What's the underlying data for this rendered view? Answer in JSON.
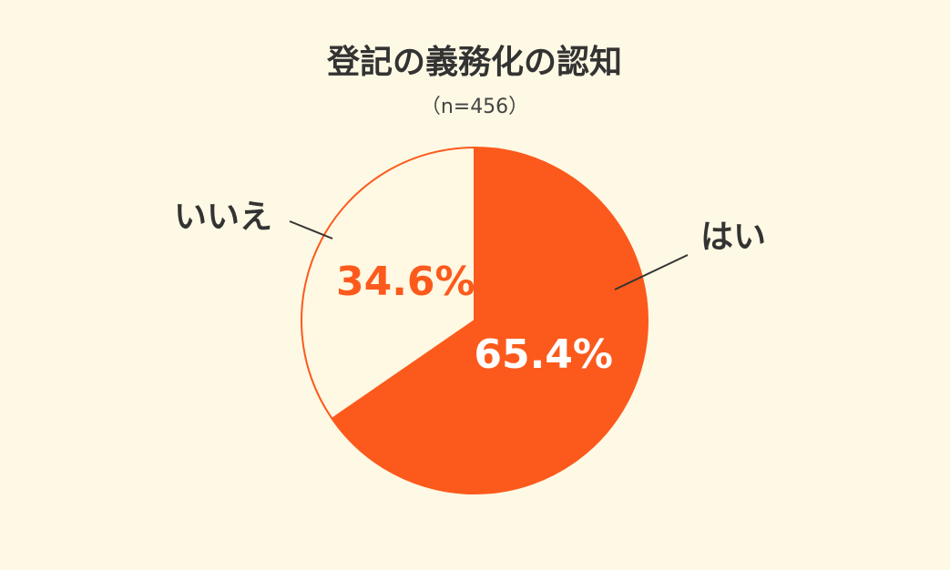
{
  "chart_data": {
    "type": "pie",
    "title": "登記の義務化の認知",
    "subtitle": "（n=456）",
    "categories": [
      "はい",
      "いいえ"
    ],
    "values": [
      65.4,
      34.6
    ],
    "value_labels": [
      "65.4%",
      "34.6%"
    ],
    "colors": [
      "#fc5a1c",
      "#fff8e3"
    ]
  }
}
